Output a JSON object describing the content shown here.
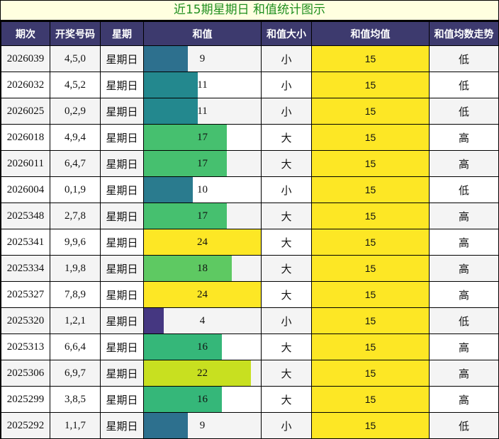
{
  "title": "近15期星期日 和值统计图示",
  "headers": [
    "期次",
    "开奖号码",
    "星期",
    "和值",
    "和值大小",
    "和值均值",
    "和值均数走势"
  ],
  "colors": {
    "title_bg": "#ffffe0",
    "title_text": "#1f8f1f",
    "header_bg": "#3d3a6e",
    "avg_bg": "#fde725",
    "row_alt_bg": "#f4f4f4"
  },
  "rows": [
    {
      "period": "2026039",
      "numbers": "4,5,0",
      "weekday": "星期日",
      "sum": 9,
      "size": "小",
      "avg": 15,
      "trend": "低",
      "bar_color": "#2d708e"
    },
    {
      "period": "2026032",
      "numbers": "4,5,2",
      "weekday": "星期日",
      "sum": 11,
      "size": "小",
      "avg": 15,
      "trend": "低",
      "bar_color": "#23888e"
    },
    {
      "period": "2026025",
      "numbers": "0,2,9",
      "weekday": "星期日",
      "sum": 11,
      "size": "小",
      "avg": 15,
      "trend": "低",
      "bar_color": "#23888e"
    },
    {
      "period": "2026018",
      "numbers": "4,9,4",
      "weekday": "星期日",
      "sum": 17,
      "size": "大",
      "avg": 15,
      "trend": "高",
      "bar_color": "#46c06f"
    },
    {
      "period": "2026011",
      "numbers": "6,4,7",
      "weekday": "星期日",
      "sum": 17,
      "size": "大",
      "avg": 15,
      "trend": "高",
      "bar_color": "#46c06f"
    },
    {
      "period": "2026004",
      "numbers": "0,1,9",
      "weekday": "星期日",
      "sum": 10,
      "size": "小",
      "avg": 15,
      "trend": "低",
      "bar_color": "#2a7b8e"
    },
    {
      "period": "2025348",
      "numbers": "2,7,8",
      "weekday": "星期日",
      "sum": 17,
      "size": "大",
      "avg": 15,
      "trend": "高",
      "bar_color": "#46c06f"
    },
    {
      "period": "2025341",
      "numbers": "9,9,6",
      "weekday": "星期日",
      "sum": 24,
      "size": "大",
      "avg": 15,
      "trend": "高",
      "bar_color": "#fde725"
    },
    {
      "period": "2025334",
      "numbers": "1,9,8",
      "weekday": "星期日",
      "sum": 18,
      "size": "大",
      "avg": 15,
      "trend": "高",
      "bar_color": "#5ec962"
    },
    {
      "period": "2025327",
      "numbers": "7,8,9",
      "weekday": "星期日",
      "sum": 24,
      "size": "大",
      "avg": 15,
      "trend": "高",
      "bar_color": "#fde725"
    },
    {
      "period": "2025320",
      "numbers": "1,2,1",
      "weekday": "星期日",
      "sum": 4,
      "size": "小",
      "avg": 15,
      "trend": "低",
      "bar_color": "#453781"
    },
    {
      "period": "2025313",
      "numbers": "6,6,4",
      "weekday": "星期日",
      "sum": 16,
      "size": "大",
      "avg": 15,
      "trend": "高",
      "bar_color": "#35b779"
    },
    {
      "period": "2025306",
      "numbers": "6,9,7",
      "weekday": "星期日",
      "sum": 22,
      "size": "大",
      "avg": 15,
      "trend": "高",
      "bar_color": "#c8e020"
    },
    {
      "period": "2025299",
      "numbers": "3,8,5",
      "weekday": "星期日",
      "sum": 16,
      "size": "大",
      "avg": 15,
      "trend": "高",
      "bar_color": "#35b779"
    },
    {
      "period": "2025292",
      "numbers": "1,1,7",
      "weekday": "星期日",
      "sum": 9,
      "size": "小",
      "avg": 15,
      "trend": "低",
      "bar_color": "#2d708e"
    }
  ],
  "chart_data": {
    "type": "bar",
    "orientation": "horizontal",
    "title": "近15期星期日 和值统计图示",
    "xlabel": "和值",
    "ylabel": "期次",
    "categories": [
      "2026039",
      "2026032",
      "2026025",
      "2026018",
      "2026011",
      "2026004",
      "2025348",
      "2025341",
      "2025334",
      "2025327",
      "2025320",
      "2025313",
      "2025306",
      "2025299",
      "2025292"
    ],
    "values": [
      9,
      11,
      11,
      17,
      17,
      10,
      17,
      24,
      18,
      24,
      4,
      16,
      22,
      16,
      9
    ],
    "xlim": [
      0,
      24
    ],
    "reference_line": {
      "name": "和值均值",
      "value": 15
    },
    "grid": false,
    "legend": "none"
  }
}
